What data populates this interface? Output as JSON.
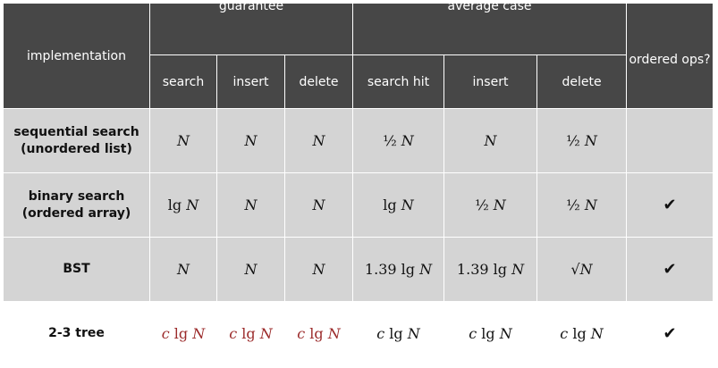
{
  "header": {
    "implementation": "implementation",
    "guarantee": "guarantee",
    "average_case": "average case",
    "ordered_ops": "ordered ops?",
    "sub": [
      "search",
      "insert",
      "delete",
      "search hit",
      "insert",
      "delete"
    ]
  },
  "rows": [
    {
      "name_line1": "sequential search",
      "name_line2": "(unordered list)",
      "cells": [
        "N",
        "N",
        "N",
        "½ N",
        "N",
        "½ N"
      ],
      "ordered": ""
    },
    {
      "name_line1": "binary search",
      "name_line2": "(ordered array)",
      "cells": [
        "lg N",
        "N",
        "N",
        "lg N",
        "½ N",
        "½ N"
      ],
      "ordered": "✔"
    },
    {
      "name_line1": "BST",
      "name_line2": "",
      "cells": [
        "N",
        "N",
        "N",
        "1.39 lg N",
        "1.39 lg N",
        "√N"
      ],
      "ordered": "✔"
    },
    {
      "name_line1": "2-3 tree",
      "name_line2": "",
      "cells": [
        "c lg N",
        "c lg N",
        "c lg N",
        "c lg N",
        "c lg N",
        "c lg N"
      ],
      "ordered": "✔"
    }
  ],
  "colors": {
    "header_bg": "#474747",
    "row_bg": "#d4d4d4",
    "highlight_row_bg": "#ffffff",
    "guarantee_highlight_text": "#9b2a2a"
  }
}
